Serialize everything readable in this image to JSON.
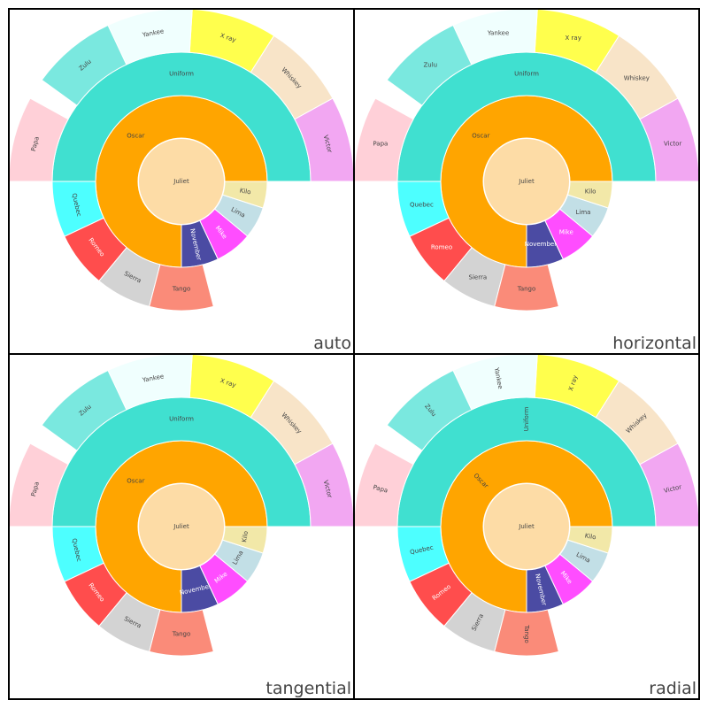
{
  "chart_data": {
    "type": "sunburst",
    "panel_titles": [
      "auto",
      "horizontal",
      "tangential",
      "radial"
    ],
    "root": {
      "name": "Juliet",
      "value": 100,
      "color": "#fddca6"
    },
    "rings": [
      [
        {
          "name": "Oscar",
          "start": 0,
          "end": 75,
          "color": "#ffa500",
          "text_color": "#444444"
        },
        {
          "name": "November",
          "start": 75,
          "end": 82,
          "color": "#4b4ba3",
          "text_color": "#ffffff"
        },
        {
          "name": "Mike",
          "start": 82,
          "end": 89,
          "color": "#ff4dff",
          "text_color": "#ffffff"
        },
        {
          "name": "Lima",
          "start": 89,
          "end": 95,
          "color": "#c2dfe6",
          "text_color": "#444444"
        },
        {
          "name": "Kilo",
          "start": 95,
          "end": 100,
          "color": "#f2e8a8",
          "text_color": "#444444"
        }
      ],
      [
        {
          "name": "Uniform",
          "start": 0,
          "end": 50,
          "color": "#40e0d0",
          "text_color": "#444444"
        },
        {
          "name": "Quebec",
          "start": 50,
          "end": 57,
          "color": "#4dffff",
          "text_color": "#444444"
        },
        {
          "name": "Romeo",
          "start": 57,
          "end": 64,
          "color": "#ff4d4d",
          "text_color": "#ffffff"
        },
        {
          "name": "Sierra",
          "start": 64,
          "end": 71,
          "color": "#d3d3d3",
          "text_color": "#444444"
        },
        {
          "name": "Tango",
          "start": 71,
          "end": 79,
          "color": "#fa8b79",
          "text_color": "#444444"
        }
      ],
      [
        {
          "name": "Victor",
          "start": 0,
          "end": 8,
          "color": "#f2a7f2",
          "text_color": "#444444"
        },
        {
          "name": "Whiskey",
          "start": 8,
          "end": 16,
          "color": "#f8e4c8",
          "text_color": "#444444"
        },
        {
          "name": "X ray",
          "start": 16,
          "end": 24,
          "color": "#ffff4d",
          "text_color": "#444444"
        },
        {
          "name": "Yankee",
          "start": 24,
          "end": 32,
          "color": "#f0fffe",
          "text_color": "#444444"
        },
        {
          "name": "Zulu",
          "start": 32,
          "end": 40,
          "color": "#7ae8df",
          "text_color": "#444444"
        },
        {
          "name": "Papa",
          "start": 42,
          "end": 50,
          "color": "#ffd0d8",
          "text_color": "#444444"
        }
      ]
    ]
  }
}
